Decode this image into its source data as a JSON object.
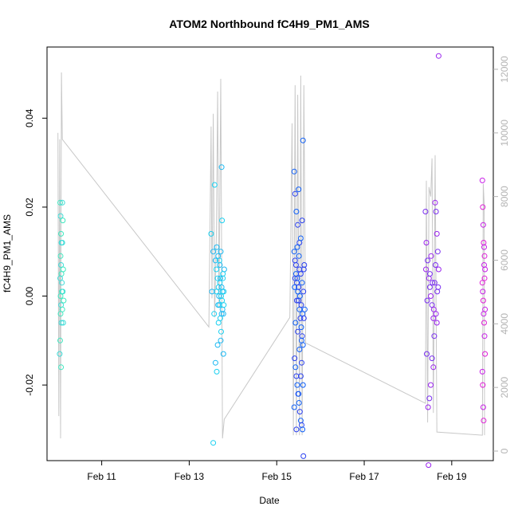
{
  "chart_data": {
    "type": "scatter",
    "title": "ATOM2 Northbound fC4H9_PM1_AMS",
    "xlabel": "Date",
    "ylabel": "fC4H9_PM1_AMS",
    "x_ticks": [
      "Feb 11",
      "Feb 13",
      "Feb 15",
      "Feb 17",
      "Feb 19"
    ],
    "y_ticks": [
      "-0.02",
      "0.00",
      "0.02",
      "0.04"
    ],
    "y2_ticks": [
      "0",
      "2000",
      "4000",
      "6000",
      "8000",
      "10000",
      "12000"
    ],
    "x_range_days": [
      9.75,
      19.95
    ],
    "ylim": [
      -0.037,
      0.056
    ],
    "y2lim": [
      -300,
      12700
    ],
    "grid": false,
    "series": [
      {
        "values": [
          [
            10.05,
            0.021
          ],
          [
            10.06,
            0.018
          ],
          [
            10.07,
            0.014
          ],
          [
            10.08,
            0.012
          ],
          [
            10.06,
            0.009
          ],
          [
            10.07,
            0.007
          ],
          [
            10.08,
            0.005
          ],
          [
            10.05,
            0.004
          ],
          [
            10.09,
            0.001
          ],
          [
            10.07,
            -0.002
          ],
          [
            10.06,
            -0.004
          ],
          [
            10.08,
            -0.006
          ],
          [
            10.05,
            -0.01
          ],
          [
            10.04,
            -0.013
          ],
          [
            10.07,
            -0.016
          ],
          [
            10.1,
            0.021
          ],
          [
            10.11,
            0.017
          ],
          [
            10.1,
            0.012
          ],
          [
            10.12,
            0.006
          ],
          [
            10.11,
            0.001
          ],
          [
            10.13,
            -0.001
          ],
          [
            10.12,
            -0.006
          ],
          [
            10.06,
            0.0
          ],
          [
            10.09,
            0.003
          ],
          [
            10.1,
            -0.003
          ]
        ],
        "colors": [
          "#3fe8c0",
          "#3fdcd8"
        ]
      },
      {
        "values": [
          [
            13.5,
            0.014
          ],
          [
            13.55,
            0.01
          ],
          [
            13.58,
            0.025
          ],
          [
            13.6,
            0.008
          ],
          [
            13.62,
            0.006
          ],
          [
            13.63,
            0.011
          ],
          [
            13.65,
            0.004
          ],
          [
            13.66,
            0.009
          ],
          [
            13.67,
            0.002
          ],
          [
            13.68,
            0.0
          ],
          [
            13.69,
            -0.002
          ],
          [
            13.7,
            0.007
          ],
          [
            13.71,
            -0.005
          ],
          [
            13.72,
            0.01
          ],
          [
            13.73,
            -0.008
          ],
          [
            13.74,
            0.029
          ],
          [
            13.75,
            0.017
          ],
          [
            13.76,
            -0.003
          ],
          [
            13.77,
            0.004
          ],
          [
            13.78,
            -0.013
          ],
          [
            13.79,
            -0.002
          ],
          [
            13.8,
            0.006
          ],
          [
            13.55,
            -0.033
          ],
          [
            13.6,
            -0.015
          ],
          [
            13.63,
            -0.017
          ],
          [
            13.65,
            -0.011
          ],
          [
            13.67,
            -0.006
          ],
          [
            13.72,
            -0.01
          ],
          [
            13.7,
            0.003
          ],
          [
            13.74,
            0.002
          ],
          [
            13.75,
            -0.001
          ],
          [
            13.76,
            0.001
          ],
          [
            13.77,
            0.005
          ],
          [
            13.78,
            -0.004
          ],
          [
            13.62,
            0.001
          ],
          [
            13.66,
            -0.002
          ],
          [
            13.69,
            0.008
          ],
          [
            13.71,
            0.004
          ],
          [
            13.73,
            0.0
          ],
          [
            13.74,
            -0.004
          ],
          [
            13.79,
            0.001
          ],
          [
            13.52,
            0.001
          ],
          [
            13.57,
            -0.004
          ]
        ],
        "colors": [
          "#1ad0f0",
          "#1ab8f2"
        ]
      },
      {
        "values": [
          [
            15.4,
            0.028
          ],
          [
            15.42,
            0.023
          ],
          [
            15.45,
            0.019
          ],
          [
            15.48,
            0.016
          ],
          [
            15.5,
            0.024
          ],
          [
            15.52,
            0.012
          ],
          [
            15.55,
            0.013
          ],
          [
            15.58,
            0.017
          ],
          [
            15.6,
            0.035
          ],
          [
            15.42,
            0.008
          ],
          [
            15.44,
            0.005
          ],
          [
            15.46,
            0.003
          ],
          [
            15.48,
            0.001
          ],
          [
            15.5,
            -0.001
          ],
          [
            15.52,
            -0.003
          ],
          [
            15.54,
            -0.005
          ],
          [
            15.56,
            -0.007
          ],
          [
            15.58,
            -0.009
          ],
          [
            15.6,
            -0.011
          ],
          [
            15.41,
            -0.014
          ],
          [
            15.43,
            -0.016
          ],
          [
            15.45,
            -0.018
          ],
          [
            15.47,
            -0.02
          ],
          [
            15.49,
            -0.022
          ],
          [
            15.51,
            -0.024
          ],
          [
            15.53,
            -0.026
          ],
          [
            15.55,
            -0.028
          ],
          [
            15.57,
            -0.029
          ],
          [
            15.59,
            -0.03
          ],
          [
            15.61,
            -0.036
          ],
          [
            15.4,
            0.01
          ],
          [
            15.44,
            0.007
          ],
          [
            15.47,
            0.004
          ],
          [
            15.5,
            0.002
          ],
          [
            15.53,
            0.0
          ],
          [
            15.56,
            -0.002
          ],
          [
            15.59,
            -0.004
          ],
          [
            15.62,
            0.006
          ],
          [
            15.41,
            0.002
          ],
          [
            15.46,
            -0.001
          ],
          [
            15.51,
            0.009
          ],
          [
            15.55,
            0.005
          ],
          [
            15.58,
            0.003
          ],
          [
            15.61,
            0.001
          ],
          [
            15.43,
            -0.006
          ],
          [
            15.48,
            -0.008
          ],
          [
            15.52,
            -0.012
          ],
          [
            15.57,
            -0.015
          ],
          [
            15.4,
            -0.025
          ],
          [
            15.45,
            -0.03
          ],
          [
            15.5,
            -0.022
          ],
          [
            15.55,
            -0.018
          ],
          [
            15.6,
            -0.02
          ],
          [
            15.63,
            0.007
          ],
          [
            15.64,
            -0.003
          ],
          [
            15.42,
            0.004
          ],
          [
            15.47,
            0.011
          ],
          [
            15.52,
            0.006
          ],
          [
            15.57,
            -0.01
          ],
          [
            15.62,
            -0.005
          ]
        ],
        "colors": [
          "#1060f8",
          "#2a40f0"
        ]
      },
      {
        "values": [
          [
            18.4,
            0.019
          ],
          [
            18.42,
            0.012
          ],
          [
            18.45,
            0.008
          ],
          [
            18.48,
            0.004
          ],
          [
            18.5,
            0.002
          ],
          [
            18.52,
            0.0
          ],
          [
            18.55,
            -0.002
          ],
          [
            18.58,
            -0.005
          ],
          [
            18.6,
            -0.009
          ],
          [
            18.62,
            0.021
          ],
          [
            18.64,
            0.019
          ],
          [
            18.66,
            0.014
          ],
          [
            18.68,
            0.01
          ],
          [
            18.7,
            0.006
          ],
          [
            18.43,
            -0.013
          ],
          [
            18.46,
            -0.025
          ],
          [
            18.49,
            -0.023
          ],
          [
            18.52,
            -0.02
          ],
          [
            18.55,
            -0.014
          ],
          [
            18.58,
            -0.016
          ],
          [
            18.61,
            0.003
          ],
          [
            18.64,
            -0.004
          ],
          [
            18.67,
            0.001
          ],
          [
            18.41,
            0.006
          ],
          [
            18.44,
            -0.001
          ],
          [
            18.47,
            -0.038
          ],
          [
            18.5,
            0.005
          ],
          [
            18.53,
            0.009
          ],
          [
            18.56,
            0.003
          ],
          [
            18.59,
            -0.003
          ],
          [
            18.63,
            0.007
          ],
          [
            18.66,
            -0.006
          ],
          [
            18.69,
            0.002
          ],
          [
            18.7,
            0.054
          ]
        ],
        "colors": [
          "#7a2ef0",
          "#9a24ee"
        ]
      },
      {
        "values": [
          [
            19.7,
            0.026
          ],
          [
            19.71,
            0.02
          ],
          [
            19.72,
            0.016
          ],
          [
            19.73,
            0.012
          ],
          [
            19.74,
            0.011
          ],
          [
            19.75,
            0.009
          ],
          [
            19.76,
            0.006
          ],
          [
            19.7,
            0.003
          ],
          [
            19.71,
            0.001
          ],
          [
            19.72,
            -0.001
          ],
          [
            19.73,
            -0.004
          ],
          [
            19.74,
            -0.006
          ],
          [
            19.75,
            -0.009
          ],
          [
            19.76,
            -0.013
          ],
          [
            19.7,
            -0.017
          ],
          [
            19.71,
            -0.02
          ],
          [
            19.72,
            -0.025
          ],
          [
            19.73,
            -0.028
          ],
          [
            19.74,
            0.007
          ],
          [
            19.75,
            0.004
          ],
          [
            19.76,
            -0.003
          ]
        ],
        "colors": [
          "#c81ee8",
          "#e01ed8"
        ]
      }
    ],
    "secondary_line": {
      "color": "#c8c8c8",
      "points": [
        [
          10.0,
          10000
        ],
        [
          10.02,
          1100
        ],
        [
          10.04,
          9800
        ],
        [
          10.06,
          400
        ],
        [
          10.08,
          11900
        ],
        [
          10.1,
          9800
        ],
        [
          13.45,
          3900
        ],
        [
          13.5,
          10200
        ],
        [
          13.52,
          4800
        ],
        [
          13.55,
          10600
        ],
        [
          13.58,
          4200
        ],
        [
          13.62,
          6800
        ],
        [
          13.65,
          11300
        ],
        [
          13.68,
          4500
        ],
        [
          13.72,
          11700
        ],
        [
          13.76,
          400
        ],
        [
          13.8,
          1000
        ],
        [
          15.3,
          4200
        ],
        [
          15.35,
          10300
        ],
        [
          15.38,
          500
        ],
        [
          15.42,
          11500
        ],
        [
          15.45,
          500
        ],
        [
          15.48,
          11200
        ],
        [
          15.52,
          500
        ],
        [
          15.55,
          11800
        ],
        [
          15.58,
          500
        ],
        [
          15.62,
          11500
        ],
        [
          15.66,
          3400
        ],
        [
          18.4,
          1500
        ],
        [
          18.42,
          8500
        ],
        [
          18.45,
          900
        ],
        [
          18.48,
          8300
        ],
        [
          18.52,
          8000
        ],
        [
          18.55,
          9200
        ],
        [
          18.58,
          1200
        ],
        [
          18.62,
          9300
        ],
        [
          18.66,
          600
        ],
        [
          19.7,
          500
        ],
        [
          19.72,
          8400
        ],
        [
          19.74,
          7800
        ],
        [
          19.75,
          500
        ]
      ]
    }
  }
}
